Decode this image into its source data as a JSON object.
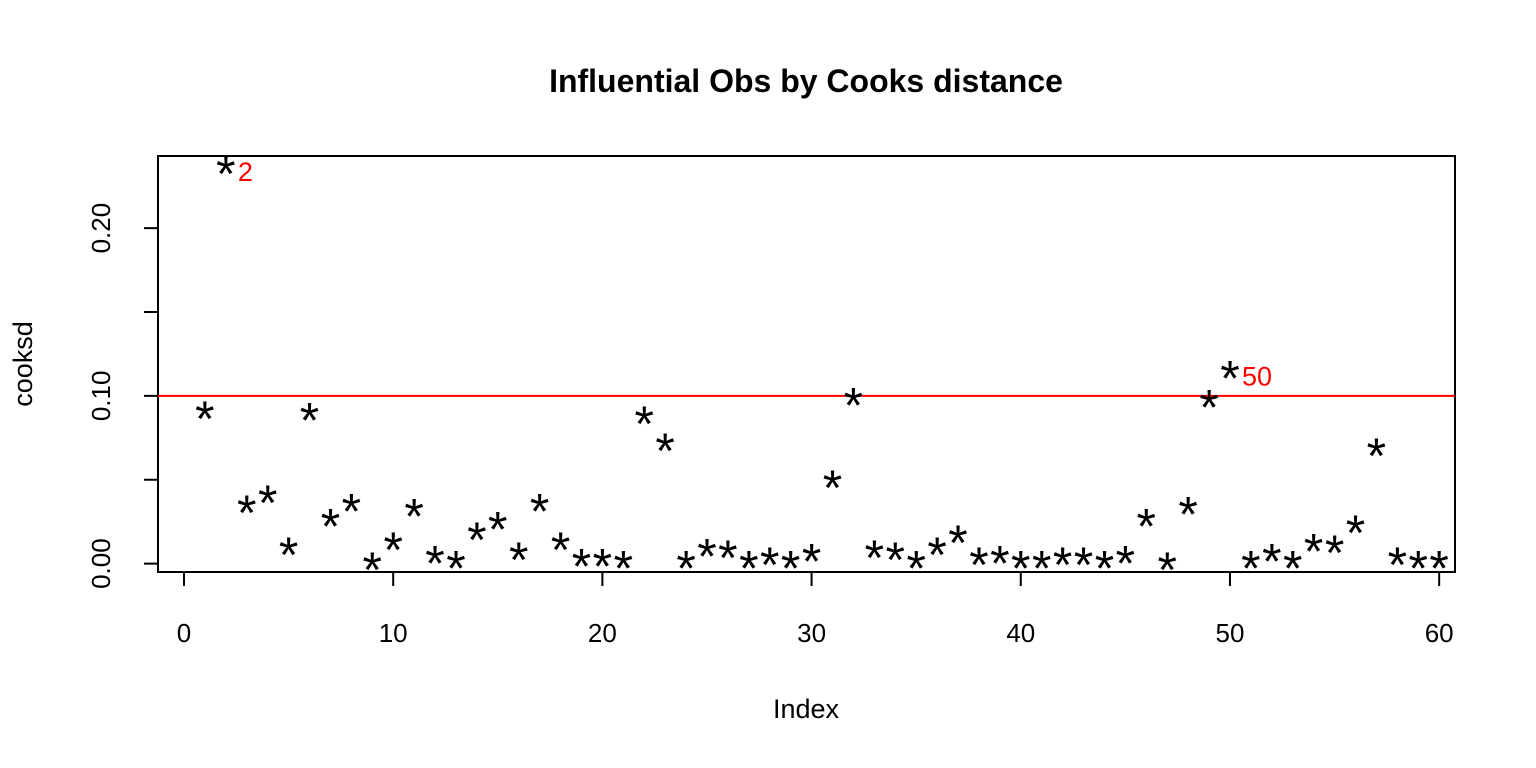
{
  "chart_data": {
    "type": "scatter",
    "title": "Influential Obs by Cooks distance",
    "xlabel": "Index",
    "ylabel": "cooksd",
    "xlim": [
      0,
      62
    ],
    "ylim": [
      -0.005,
      0.243
    ],
    "x_ticks": [
      0,
      10,
      20,
      30,
      40,
      50,
      60
    ],
    "x_tick_labels": [
      "0",
      "10",
      "20",
      "30",
      "40",
      "50",
      "60"
    ],
    "y_ticks": [
      0.0,
      0.05,
      0.1,
      0.15,
      0.2
    ],
    "y_tick_labels": [
      "0.00",
      "",
      "0.10",
      "",
      "0.20"
    ],
    "point_symbol": "*",
    "grid": false,
    "legend": "none",
    "x": [
      1,
      2,
      3,
      4,
      5,
      6,
      7,
      8,
      9,
      10,
      11,
      12,
      13,
      14,
      15,
      16,
      17,
      18,
      19,
      20,
      21,
      22,
      23,
      24,
      25,
      26,
      27,
      28,
      29,
      30,
      31,
      32,
      33,
      34,
      35,
      36,
      37,
      38,
      39,
      40,
      41,
      42,
      43,
      44,
      45,
      46,
      47,
      48,
      49,
      50,
      51,
      52,
      53,
      54,
      55,
      56,
      57,
      58,
      59,
      60
    ],
    "values": [
      0.088,
      0.234,
      0.032,
      0.038,
      0.007,
      0.087,
      0.024,
      0.033,
      -0.002,
      0.01,
      0.03,
      0.002,
      -0.001,
      0.016,
      0.022,
      0.004,
      0.033,
      0.01,
      0.0,
      0.0,
      -0.001,
      0.085,
      0.069,
      -0.001,
      0.006,
      0.005,
      -0.001,
      0.001,
      -0.001,
      0.003,
      0.047,
      0.096,
      0.005,
      0.004,
      -0.001,
      0.007,
      0.014,
      0.001,
      0.002,
      -0.001,
      -0.001,
      0.001,
      0.001,
      -0.001,
      0.002,
      0.024,
      -0.002,
      0.031,
      0.095,
      0.112,
      -0.001,
      0.003,
      -0.001,
      0.009,
      0.008,
      0.02,
      0.066,
      0.001,
      -0.001,
      -0.001
    ],
    "threshold": {
      "value": 0.1,
      "color": "#ff0000"
    },
    "annotations": [
      {
        "label": "2",
        "x": 2,
        "y": 0.234,
        "color": "#ff0000"
      },
      {
        "label": "50",
        "x": 50,
        "y": 0.112,
        "color": "#ff0000"
      }
    ]
  }
}
